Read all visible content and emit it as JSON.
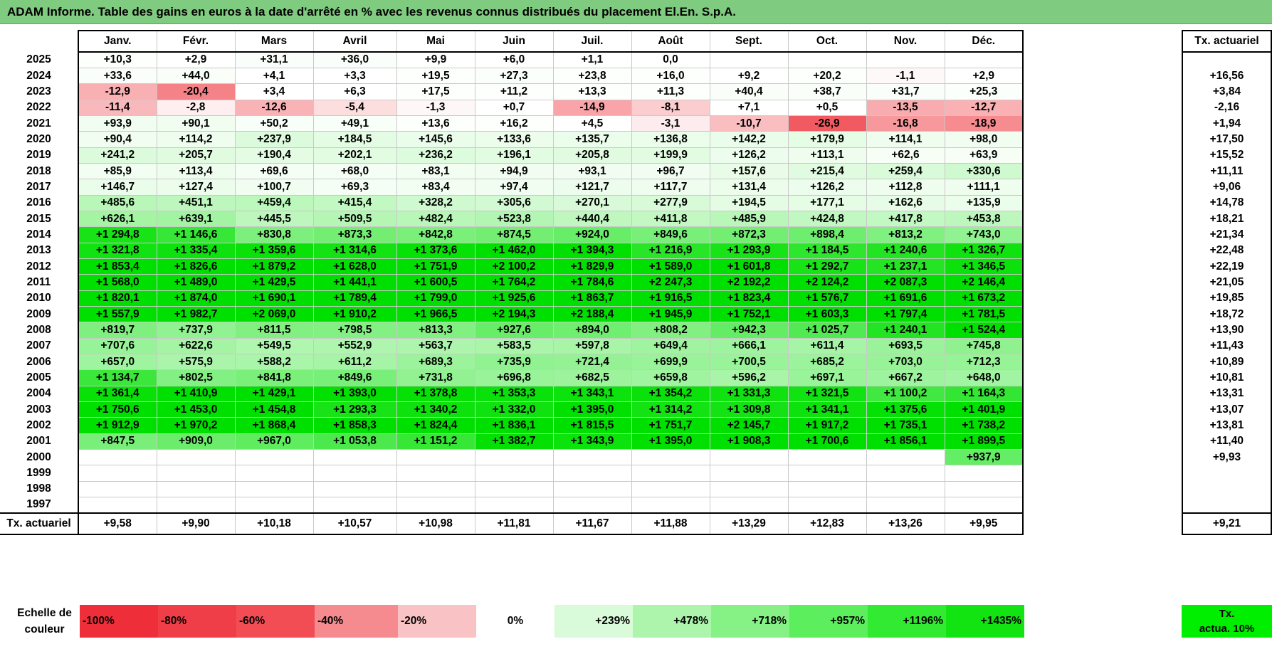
{
  "title": "ADAM Informe. Table des gains en euros à la date d'arrêté en % avec les revenus connus distribués du placement El.En. S.p.A.",
  "months": [
    "Janv.",
    "Févr.",
    "Mars",
    "Avril",
    "Mai",
    "Juin",
    "Juil.",
    "Août",
    "Sept.",
    "Oct.",
    "Nov.",
    "Déc."
  ],
  "side_header": "Tx. actuariel",
  "rows": [
    {
      "year": "2025",
      "cells": [
        "+10,3",
        "+2,9",
        "+31,1",
        "+36,0",
        "+9,9",
        "+6,0",
        "+1,1",
        "0,0",
        "",
        "",
        "",
        ""
      ],
      "tx": ""
    },
    {
      "year": "2024",
      "cells": [
        "+33,6",
        "+44,0",
        "+4,1",
        "+3,3",
        "+19,5",
        "+27,3",
        "+23,8",
        "+16,0",
        "+9,2",
        "+20,2",
        "-1,1",
        "+2,9"
      ],
      "tx": "+16,56"
    },
    {
      "year": "2023",
      "cells": [
        "-12,9",
        "-20,4",
        "+3,4",
        "+6,3",
        "+17,5",
        "+11,2",
        "+13,3",
        "+11,3",
        "+40,4",
        "+38,7",
        "+31,7",
        "+25,3"
      ],
      "tx": "+3,84"
    },
    {
      "year": "2022",
      "cells": [
        "-11,4",
        "-2,8",
        "-12,6",
        "-5,4",
        "-1,3",
        "+0,7",
        "-14,9",
        "-8,1",
        "+7,1",
        "+0,5",
        "-13,5",
        "-12,7"
      ],
      "tx": "-2,16"
    },
    {
      "year": "2021",
      "cells": [
        "+93,9",
        "+90,1",
        "+50,2",
        "+49,1",
        "+13,6",
        "+16,2",
        "+4,5",
        "-3,1",
        "-10,7",
        "-26,9",
        "-16,8",
        "-18,9"
      ],
      "tx": "+1,94"
    },
    {
      "year": "2020",
      "cells": [
        "+90,4",
        "+114,2",
        "+237,9",
        "+184,5",
        "+145,6",
        "+133,6",
        "+135,7",
        "+136,8",
        "+142,2",
        "+179,9",
        "+114,1",
        "+98,0"
      ],
      "tx": "+17,50"
    },
    {
      "year": "2019",
      "cells": [
        "+241,2",
        "+205,7",
        "+190,4",
        "+202,1",
        "+236,2",
        "+196,1",
        "+205,8",
        "+199,9",
        "+126,2",
        "+113,1",
        "+62,6",
        "+63,9"
      ],
      "tx": "+15,52"
    },
    {
      "year": "2018",
      "cells": [
        "+85,9",
        "+113,4",
        "+69,6",
        "+68,0",
        "+83,1",
        "+94,9",
        "+93,1",
        "+96,7",
        "+157,6",
        "+215,4",
        "+259,4",
        "+330,6"
      ],
      "tx": "+11,11"
    },
    {
      "year": "2017",
      "cells": [
        "+146,7",
        "+127,4",
        "+100,7",
        "+69,3",
        "+83,4",
        "+97,4",
        "+121,7",
        "+117,7",
        "+131,4",
        "+126,2",
        "+112,8",
        "+111,1"
      ],
      "tx": "+9,06"
    },
    {
      "year": "2016",
      "cells": [
        "+485,6",
        "+451,1",
        "+459,4",
        "+415,4",
        "+328,2",
        "+305,6",
        "+270,1",
        "+277,9",
        "+194,5",
        "+177,1",
        "+162,6",
        "+135,9"
      ],
      "tx": "+14,78"
    },
    {
      "year": "2015",
      "cells": [
        "+626,1",
        "+639,1",
        "+445,5",
        "+509,5",
        "+482,4",
        "+523,8",
        "+440,4",
        "+411,8",
        "+485,9",
        "+424,8",
        "+417,8",
        "+453,8"
      ],
      "tx": "+18,21"
    },
    {
      "year": "2014",
      "cells": [
        "+1 294,8",
        "+1 146,6",
        "+830,8",
        "+873,3",
        "+842,8",
        "+874,5",
        "+924,0",
        "+849,6",
        "+872,3",
        "+898,4",
        "+813,2",
        "+743,0"
      ],
      "tx": "+21,34"
    },
    {
      "year": "2013",
      "cells": [
        "+1 321,8",
        "+1 335,4",
        "+1 359,6",
        "+1 314,6",
        "+1 373,6",
        "+1 462,0",
        "+1 394,3",
        "+1 216,9",
        "+1 293,9",
        "+1 184,5",
        "+1 240,6",
        "+1 326,7"
      ],
      "tx": "+22,48"
    },
    {
      "year": "2012",
      "cells": [
        "+1 853,4",
        "+1 826,6",
        "+1 879,2",
        "+1 628,0",
        "+1 751,9",
        "+2 100,2",
        "+1 829,9",
        "+1 589,0",
        "+1 601,8",
        "+1 292,7",
        "+1 237,1",
        "+1 346,5"
      ],
      "tx": "+22,19"
    },
    {
      "year": "2011",
      "cells": [
        "+1 568,0",
        "+1 489,0",
        "+1 429,5",
        "+1 441,1",
        "+1 600,5",
        "+1 764,2",
        "+1 784,6",
        "+2 247,3",
        "+2 192,2",
        "+2 124,2",
        "+2 087,3",
        "+2 146,4"
      ],
      "tx": "+21,05"
    },
    {
      "year": "2010",
      "cells": [
        "+1 820,1",
        "+1 874,0",
        "+1 690,1",
        "+1 789,4",
        "+1 799,0",
        "+1 925,6",
        "+1 863,7",
        "+1 916,5",
        "+1 823,4",
        "+1 576,7",
        "+1 691,6",
        "+1 673,2"
      ],
      "tx": "+19,85"
    },
    {
      "year": "2009",
      "cells": [
        "+1 557,9",
        "+1 982,7",
        "+2 069,0",
        "+1 910,2",
        "+1 966,5",
        "+2 194,3",
        "+2 188,4",
        "+1 945,9",
        "+1 752,1",
        "+1 603,3",
        "+1 797,4",
        "+1 781,5"
      ],
      "tx": "+18,72"
    },
    {
      "year": "2008",
      "cells": [
        "+819,7",
        "+737,9",
        "+811,5",
        "+798,5",
        "+813,3",
        "+927,6",
        "+894,0",
        "+808,2",
        "+942,3",
        "+1 025,7",
        "+1 240,1",
        "+1 524,4"
      ],
      "tx": "+13,90"
    },
    {
      "year": "2007",
      "cells": [
        "+707,6",
        "+622,6",
        "+549,5",
        "+552,9",
        "+563,7",
        "+583,5",
        "+597,8",
        "+649,4",
        "+666,1",
        "+611,4",
        "+693,5",
        "+745,8"
      ],
      "tx": "+11,43"
    },
    {
      "year": "2006",
      "cells": [
        "+657,0",
        "+575,9",
        "+588,2",
        "+611,2",
        "+689,3",
        "+735,9",
        "+721,4",
        "+699,9",
        "+700,5",
        "+685,2",
        "+703,0",
        "+712,3"
      ],
      "tx": "+10,89"
    },
    {
      "year": "2005",
      "cells": [
        "+1 134,7",
        "+802,5",
        "+841,8",
        "+849,6",
        "+731,8",
        "+696,8",
        "+682,5",
        "+659,8",
        "+596,2",
        "+697,1",
        "+667,2",
        "+648,0"
      ],
      "tx": "+10,81"
    },
    {
      "year": "2004",
      "cells": [
        "+1 361,4",
        "+1 410,9",
        "+1 429,1",
        "+1 393,0",
        "+1 378,8",
        "+1 353,3",
        "+1 343,1",
        "+1 354,2",
        "+1 331,3",
        "+1 321,5",
        "+1 100,2",
        "+1 164,3"
      ],
      "tx": "+13,31"
    },
    {
      "year": "2003",
      "cells": [
        "+1 750,6",
        "+1 453,0",
        "+1 454,8",
        "+1 293,3",
        "+1 340,2",
        "+1 332,0",
        "+1 395,0",
        "+1 314,2",
        "+1 309,8",
        "+1 341,1",
        "+1 375,6",
        "+1 401,9"
      ],
      "tx": "+13,07"
    },
    {
      "year": "2002",
      "cells": [
        "+1 912,9",
        "+1 970,2",
        "+1 868,4",
        "+1 858,3",
        "+1 824,4",
        "+1 836,1",
        "+1 815,5",
        "+1 751,7",
        "+2 145,7",
        "+1 917,2",
        "+1 735,1",
        "+1 738,2"
      ],
      "tx": "+13,81"
    },
    {
      "year": "2001",
      "cells": [
        "+847,5",
        "+909,0",
        "+967,0",
        "+1 053,8",
        "+1 151,2",
        "+1 382,7",
        "+1 343,9",
        "+1 395,0",
        "+1 908,3",
        "+1 700,6",
        "+1 856,1",
        "+1 899,5"
      ],
      "tx": "+11,40"
    },
    {
      "year": "2000",
      "cells": [
        "",
        "",
        "",
        "",
        "",
        "",
        "",
        "",
        "",
        "",
        "",
        "+937,9"
      ],
      "tx": "+9,93"
    },
    {
      "year": "1999",
      "cells": [
        "",
        "",
        "",
        "",
        "",
        "",
        "",
        "",
        "",
        "",
        "",
        ""
      ],
      "tx": ""
    },
    {
      "year": "1998",
      "cells": [
        "",
        "",
        "",
        "",
        "",
        "",
        "",
        "",
        "",
        "",
        "",
        ""
      ],
      "tx": ""
    },
    {
      "year": "1997",
      "cells": [
        "",
        "",
        "",
        "",
        "",
        "",
        "",
        "",
        "",
        "",
        "",
        ""
      ],
      "tx": ""
    }
  ],
  "total_row": {
    "label": "Tx. actuariel",
    "cells": [
      "+9,58",
      "+9,90",
      "+10,18",
      "+10,57",
      "+10,98",
      "+11,81",
      "+11,67",
      "+11,88",
      "+13,29",
      "+12,83",
      "+13,26",
      "+9,95"
    ],
    "tx": "+9,21"
  },
  "legend": {
    "label_line1": "Echelle de",
    "label_line2": "couleur",
    "swatches": [
      {
        "text": "-100%",
        "color": "#ee2f3a"
      },
      {
        "text": "-80%",
        "color": "#f03e48"
      },
      {
        "text": "-60%",
        "color": "#f24d55"
      },
      {
        "text": "-40%",
        "color": "#f58b8f"
      },
      {
        "text": "-20%",
        "color": "#f9c2c4"
      },
      {
        "text": "0%",
        "color": "#ffffff"
      },
      {
        "text": "+239%",
        "color": "#d9fbd9"
      },
      {
        "text": "+478%",
        "color": "#adf5ad"
      },
      {
        "text": "+718%",
        "color": "#86f286"
      },
      {
        "text": "+957%",
        "color": "#5cee5c"
      },
      {
        "text": "+1196%",
        "color": "#32ea32"
      },
      {
        "text": "+1435%",
        "color": "#12e412"
      }
    ],
    "side_line1": "Tx.",
    "side_line2": "actua. 10%",
    "side_color": "#00ee00"
  }
}
